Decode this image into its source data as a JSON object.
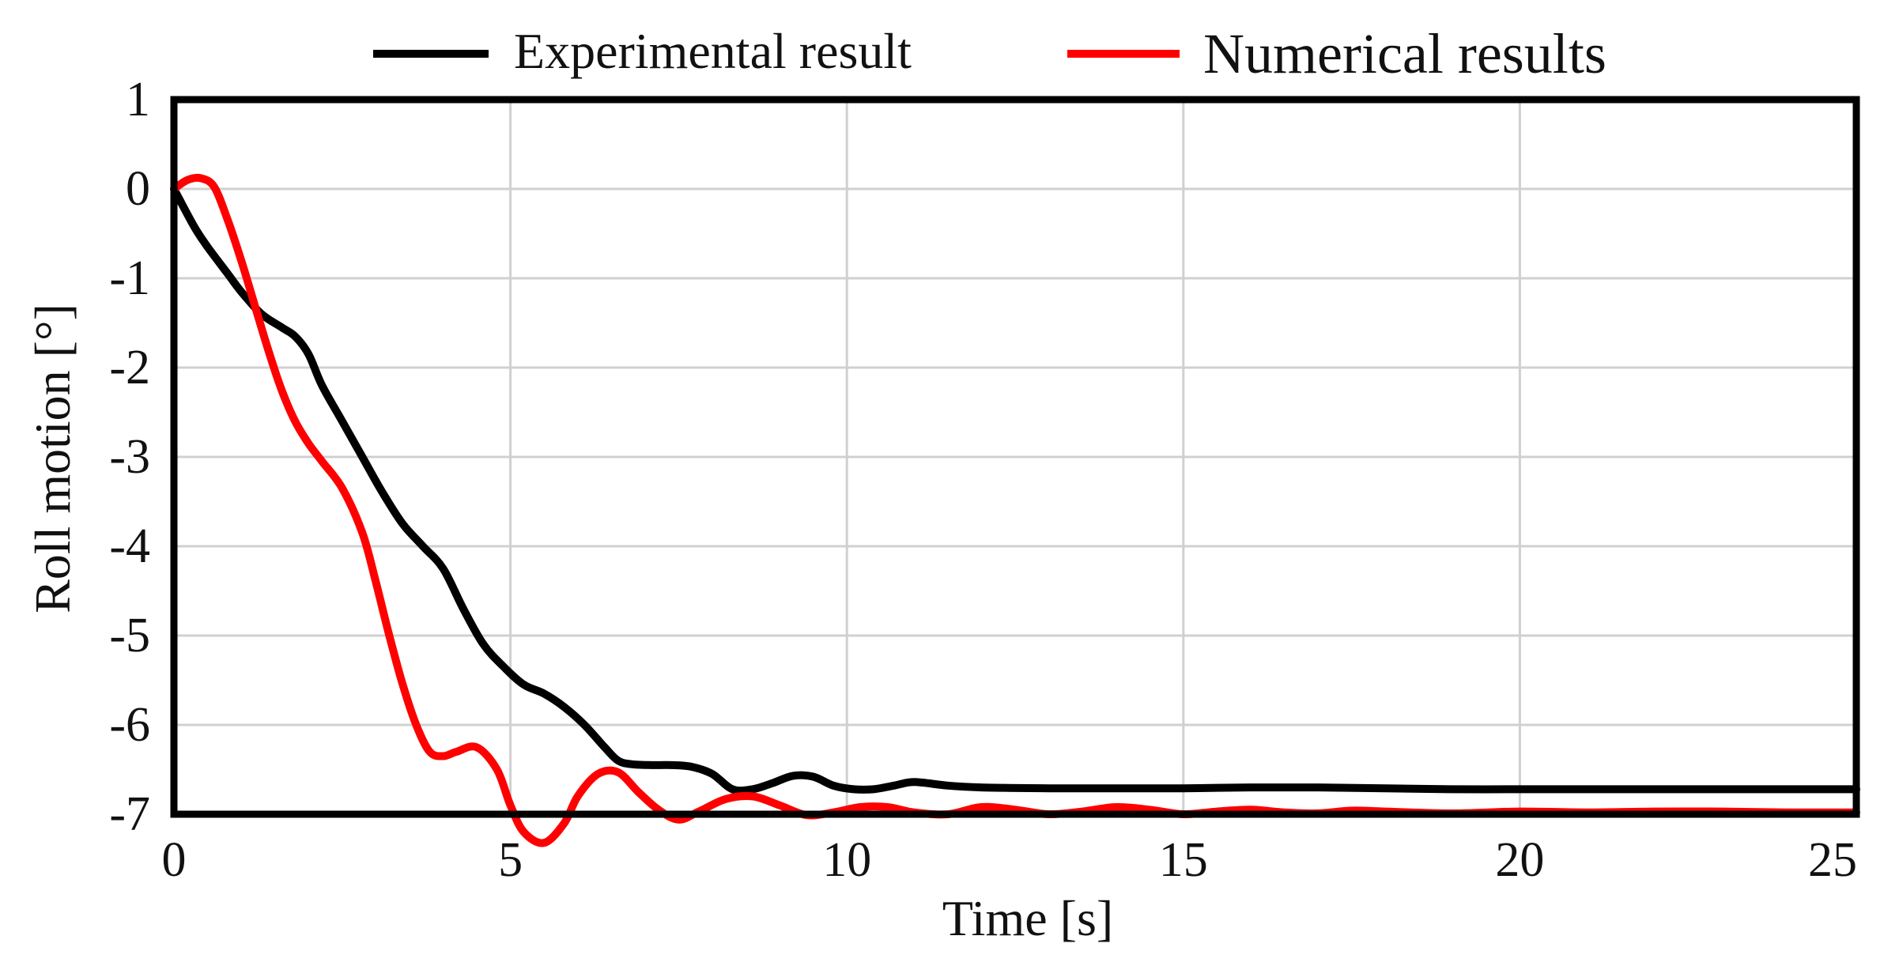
{
  "chart_data": {
    "type": "line",
    "xlabel": "Time [s]",
    "ylabel": "Roll motion  [°]",
    "xlim": [
      0,
      25
    ],
    "ylim": [
      -7,
      1
    ],
    "xticks": [
      "0",
      "5",
      "10",
      "15",
      "20",
      "25"
    ],
    "yticks": [
      "1",
      "0",
      "-1",
      "-2",
      "-3",
      "-4",
      "-5",
      "-6",
      "-7"
    ],
    "grid": true,
    "legend_position": "top",
    "series": [
      {
        "name": "Experimental result",
        "color": "#000000",
        "x": [
          0,
          0.3,
          0.5,
          0.8,
          1.0,
          1.3,
          1.6,
          1.8,
          2.0,
          2.2,
          2.5,
          2.8,
          3.1,
          3.4,
          3.7,
          4.0,
          4.3,
          4.6,
          4.9,
          5.2,
          5.5,
          5.8,
          6.1,
          6.4,
          6.6,
          6.8,
          7.1,
          7.4,
          7.7,
          8.0,
          8.3,
          8.6,
          8.9,
          9.2,
          9.5,
          9.8,
          10.1,
          10.4,
          10.7,
          11.0,
          11.5,
          12.0,
          13.0,
          14.0,
          15.0,
          16.0,
          17.0,
          18.0,
          19.0,
          20.0,
          21.0,
          22.0,
          23.0,
          24.0,
          25.0
        ],
        "y": [
          0.0,
          -0.42,
          -0.65,
          -0.95,
          -1.15,
          -1.4,
          -1.55,
          -1.65,
          -1.85,
          -2.2,
          -2.6,
          -3.0,
          -3.4,
          -3.75,
          -4.0,
          -4.25,
          -4.7,
          -5.1,
          -5.35,
          -5.55,
          -5.65,
          -5.8,
          -6.0,
          -6.25,
          -6.4,
          -6.44,
          -6.45,
          -6.45,
          -6.47,
          -6.55,
          -6.72,
          -6.72,
          -6.65,
          -6.57,
          -6.58,
          -6.68,
          -6.72,
          -6.72,
          -6.68,
          -6.64,
          -6.68,
          -6.7,
          -6.71,
          -6.71,
          -6.71,
          -6.7,
          -6.7,
          -6.71,
          -6.72,
          -6.72,
          -6.72,
          -6.72,
          -6.72,
          -6.72,
          -6.72
        ]
      },
      {
        "name": "Numerical results",
        "color": "#ff0000",
        "x": [
          0,
          0.2,
          0.4,
          0.6,
          0.8,
          1.0,
          1.2,
          1.4,
          1.6,
          1.8,
          2.0,
          2.2,
          2.5,
          2.8,
          3.0,
          3.2,
          3.4,
          3.6,
          3.8,
          4.0,
          4.2,
          4.5,
          4.8,
          5.0,
          5.2,
          5.5,
          5.8,
          6.0,
          6.3,
          6.6,
          6.9,
          7.2,
          7.5,
          7.8,
          8.2,
          8.6,
          9.0,
          9.4,
          9.8,
          10.2,
          10.6,
          11.0,
          11.5,
          12.0,
          12.5,
          13.0,
          13.5,
          14.0,
          14.5,
          15.0,
          15.5,
          16.0,
          16.5,
          17.0,
          17.5,
          18.0,
          19.0,
          20.0,
          21.0,
          22.0,
          23.0,
          24.0,
          25.0
        ],
        "y": [
          0.0,
          0.1,
          0.12,
          0.02,
          -0.35,
          -0.8,
          -1.3,
          -1.8,
          -2.25,
          -2.6,
          -2.85,
          -3.05,
          -3.35,
          -3.85,
          -4.4,
          -5.0,
          -5.55,
          -6.0,
          -6.3,
          -6.35,
          -6.3,
          -6.25,
          -6.5,
          -6.9,
          -7.2,
          -7.32,
          -7.1,
          -6.8,
          -6.55,
          -6.53,
          -6.75,
          -6.95,
          -7.06,
          -6.97,
          -6.83,
          -6.8,
          -6.9,
          -7.01,
          -6.98,
          -6.92,
          -6.92,
          -6.98,
          -7.0,
          -6.92,
          -6.95,
          -7.0,
          -6.97,
          -6.92,
          -6.95,
          -7.0,
          -6.97,
          -6.95,
          -6.98,
          -6.99,
          -6.96,
          -6.97,
          -6.99,
          -6.97,
          -6.98,
          -6.97,
          -6.97,
          -6.98,
          -6.98
        ]
      }
    ]
  }
}
